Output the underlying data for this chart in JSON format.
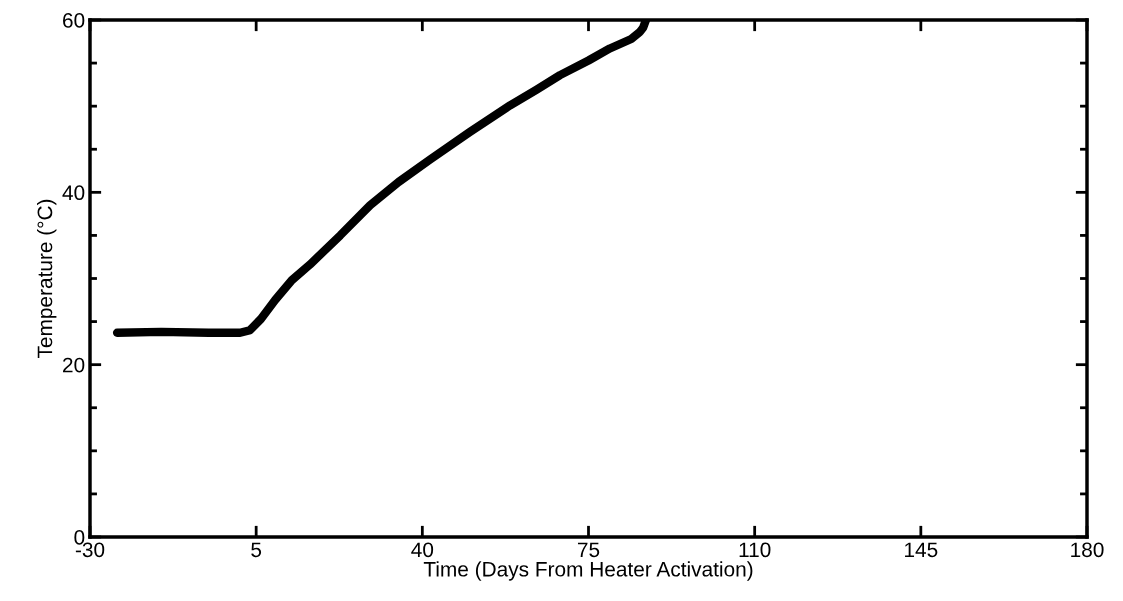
{
  "chart_data": {
    "type": "line",
    "xlabel": "Time (Days From Heater Activation)",
    "ylabel": "Temperature (°C)",
    "x": [
      -24.3,
      -15,
      -5,
      1.6,
      3.7,
      6,
      9,
      12.5,
      16.3,
      22.7,
      29,
      35,
      41.6,
      50,
      58.5,
      64,
      69,
      75,
      79.5,
      84,
      85.8,
      86.5,
      87.1
    ],
    "series": [
      {
        "color": "#000000",
        "values": [
          23.7,
          23.8,
          23.7,
          23.7,
          24.0,
          25.3,
          27.5,
          29.8,
          31.6,
          35.0,
          38.5,
          41.2,
          43.8,
          47.0,
          50.1,
          51.9,
          53.6,
          55.3,
          56.7,
          57.8,
          58.6,
          59.1,
          60.0
        ]
      }
    ],
    "xlim": [
      -30,
      180
    ],
    "xticks": [
      -30,
      5,
      40,
      75,
      110,
      145,
      180
    ],
    "ylim": [
      0,
      60
    ],
    "yticks": [
      0,
      {
        "value": 5,
        "label": null
      },
      {
        "value": 10,
        "label": null
      },
      {
        "value": 15,
        "label": null
      },
      20,
      {
        "value": 25,
        "label": null
      },
      {
        "value": 30,
        "label": null
      },
      {
        "value": 35,
        "label": null
      },
      40,
      {
        "value": 45,
        "label": null
      },
      {
        "value": 50,
        "label": null
      },
      {
        "value": 55,
        "label": null
      },
      60
    ],
    "grid": false,
    "legend": false,
    "marker": "none",
    "line_style": "solid"
  }
}
